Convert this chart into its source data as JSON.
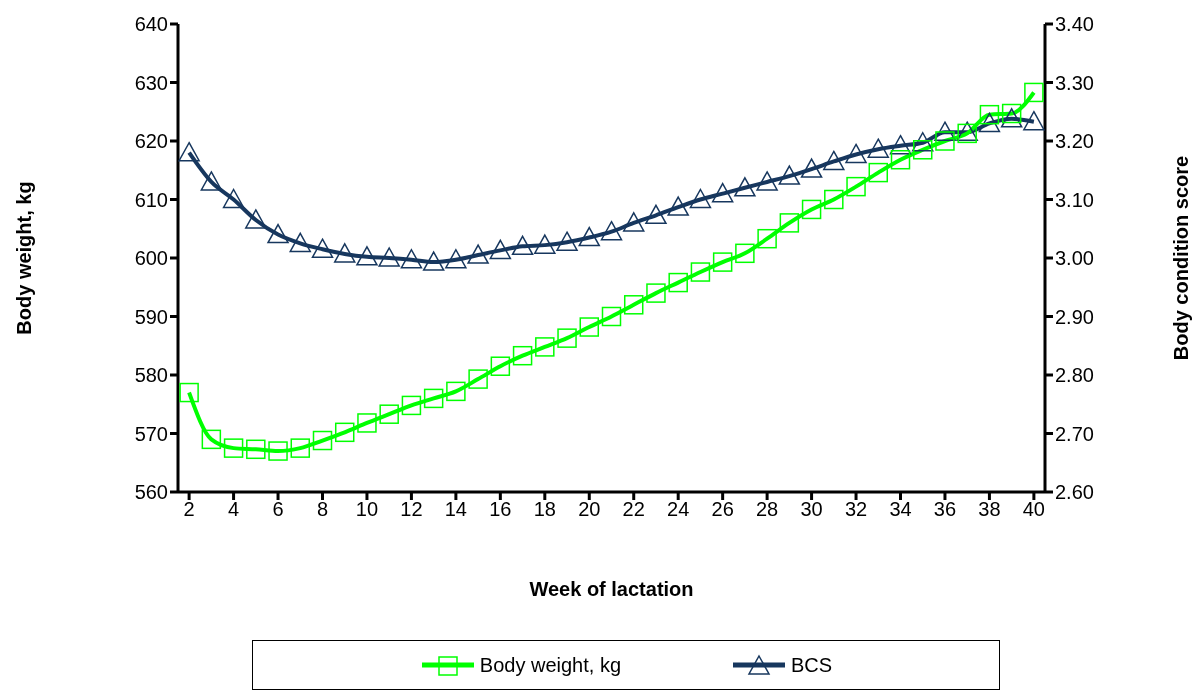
{
  "chart_data": {
    "type": "line",
    "xlabel": "Week of lactation",
    "ylabel": "Body weight, kg",
    "y2label": "Body condition score",
    "x": [
      2,
      3,
      4,
      5,
      6,
      7,
      8,
      9,
      10,
      11,
      12,
      13,
      14,
      15,
      16,
      17,
      18,
      19,
      20,
      21,
      22,
      23,
      24,
      25,
      26,
      27,
      28,
      29,
      30,
      31,
      32,
      33,
      34,
      35,
      36,
      37,
      38,
      39,
      40
    ],
    "xlim": [
      1.5,
      40.5
    ],
    "xticks": [
      2,
      4,
      6,
      8,
      10,
      12,
      14,
      16,
      18,
      20,
      22,
      24,
      26,
      28,
      30,
      32,
      34,
      36,
      38,
      40
    ],
    "ylim": [
      560,
      640
    ],
    "yticks": [
      560,
      570,
      580,
      590,
      600,
      610,
      620,
      630,
      640
    ],
    "y2lim": [
      2.6,
      3.4
    ],
    "y2ticks": [
      {
        "value": 2.6,
        "label": "2.60"
      },
      {
        "value": 2.7,
        "label": "2.70"
      },
      {
        "value": 2.8,
        "label": "2.80"
      },
      {
        "value": 2.9,
        "label": "2.90"
      },
      {
        "value": 3.0,
        "label": "3.00"
      },
      {
        "value": 3.1,
        "label": "3.10"
      },
      {
        "value": 3.2,
        "label": "3.20"
      },
      {
        "value": 3.3,
        "label": "3.30"
      },
      {
        "value": 3.4,
        "label": "3.40"
      }
    ],
    "grid": false,
    "legend": "bottom",
    "line_style": "solid",
    "series": [
      {
        "name": "Body weight, kg",
        "color": "#00ff00",
        "marker": "square",
        "values": [
          577,
          569,
          567.5,
          567.3,
          567,
          567.5,
          568.8,
          570.2,
          571.8,
          573.3,
          574.8,
          576,
          577.2,
          579.3,
          581.5,
          583.3,
          584.8,
          586.3,
          588.2,
          590,
          592,
          594,
          595.8,
          597.6,
          599.3,
          600.8,
          603.3,
          606,
          608.3,
          610,
          612.2,
          614.6,
          616.8,
          618.5,
          620,
          621.3,
          624.5,
          624.7,
          628.3
        ]
      },
      {
        "name": "BCS",
        "color": "#17375e",
        "marker": "triangle",
        "axis": "y2",
        "values": [
          3.18,
          3.13,
          3.1,
          3.065,
          3.04,
          3.025,
          3.015,
          3.007,
          3.002,
          3.0,
          2.997,
          2.993,
          2.997,
          3.005,
          3.013,
          3.02,
          3.022,
          3.027,
          3.035,
          3.045,
          3.06,
          3.073,
          3.087,
          3.1,
          3.11,
          3.12,
          3.13,
          3.14,
          3.152,
          3.165,
          3.177,
          3.186,
          3.192,
          3.197,
          3.215,
          3.215,
          3.23,
          3.238,
          3.233
        ]
      }
    ]
  }
}
